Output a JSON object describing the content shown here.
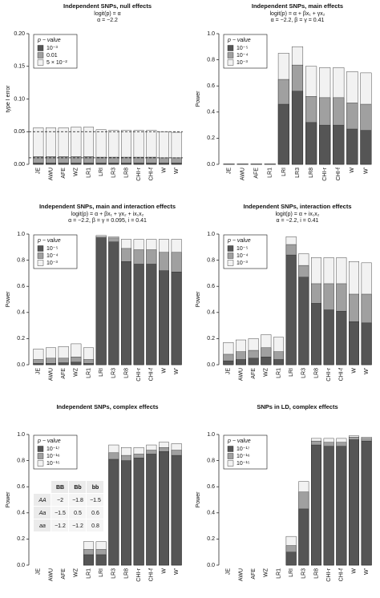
{
  "chart_data": [
    {
      "type": "overlaid_bar",
      "title": "Independent SNPs, null effects",
      "subtitle": [
        "logit(p) = α",
        "α = −2.2"
      ],
      "ylabel": "type I error",
      "categories": [
        "JE",
        "AWU",
        "AFE",
        "WZ",
        "LR1",
        "LRI",
        "LR3",
        "LR8",
        "CHI-r",
        "CHI-f",
        "W",
        "W'"
      ],
      "legend_title": "p − value",
      "legend": "top-left",
      "series": [
        {
          "name": "10⁻³",
          "color": "#555555",
          "values": [
            0.002,
            0.002,
            0.002,
            0.002,
            0.002,
            0.002,
            0.002,
            0.002,
            0.002,
            0.002,
            0.002,
            0.002
          ]
        },
        {
          "name": "0.01",
          "color": "#a0a0a0",
          "values": [
            0.012,
            0.012,
            0.012,
            0.012,
            0.012,
            0.011,
            0.011,
            0.011,
            0.011,
            0.011,
            0.01,
            0.01
          ]
        },
        {
          "name": "5 × 10⁻²",
          "color": "#f2f2f2",
          "values": [
            0.056,
            0.056,
            0.056,
            0.057,
            0.057,
            0.053,
            0.052,
            0.052,
            0.052,
            0.052,
            0.05,
            0.049
          ]
        }
      ],
      "reference_lines": [
        0.05,
        0.01
      ],
      "ylim": [
        0,
        0.2
      ],
      "yticks": [
        {
          "value": 0,
          "label": "0.00"
        },
        0.05,
        {
          "value": 0.1,
          "label": "0.10"
        },
        0.15,
        {
          "value": 0.2,
          "label": "0.20"
        }
      ]
    },
    {
      "type": "overlaid_bar",
      "title": "Independent SNPs, main effects",
      "subtitle": [
        "logit(p) = α + βx₁ + γx₂",
        "α = −2.2,  β = γ = 0.41"
      ],
      "ylabel": "Power",
      "categories": [
        "JE",
        "AWU",
        "AFE",
        "LR1",
        "LRI",
        "LR3",
        "LR8",
        "CHI-r",
        "CHI-f",
        "W",
        "W'"
      ],
      "legend_title": "p − value",
      "legend": "top-left",
      "series": [
        {
          "name": "10⁻⁵",
          "color": "#555555",
          "values": [
            0.002,
            0.002,
            0.002,
            0.002,
            0.46,
            0.56,
            0.32,
            0.3,
            0.3,
            0.27,
            0.26
          ]
        },
        {
          "name": "10⁻⁴",
          "color": "#a0a0a0",
          "values": [
            0.002,
            0.002,
            0.002,
            0.002,
            0.65,
            0.76,
            0.52,
            0.51,
            0.51,
            0.47,
            0.46
          ]
        },
        {
          "name": "10⁻³",
          "color": "#f2f2f2",
          "values": [
            0.003,
            0.003,
            0.003,
            0.003,
            0.85,
            0.9,
            0.75,
            0.74,
            0.74,
            0.71,
            0.7
          ]
        }
      ],
      "ylim": [
        0,
        1
      ],
      "yticks": [
        {
          "value": 0,
          "label": "0.0"
        },
        0.2,
        0.4,
        0.6,
        0.8,
        {
          "value": 1,
          "label": "1.0"
        }
      ]
    },
    {
      "type": "overlaid_bar",
      "title": "Independent SNPs, main and interaction effects",
      "subtitle": [
        "logit(p) = α + βx₁ + γx₂ + ix₁x₂",
        "α = −2.2,  β = γ = 0.095,  i = 0.41"
      ],
      "ylabel": "Power",
      "categories": [
        "JE",
        "AWU",
        "AFE",
        "WZ",
        "LR1",
        "LRI",
        "LR3",
        "LR8",
        "CHI-r",
        "CHI-f",
        "W",
        "W'"
      ],
      "legend_title": "p − value",
      "legend": "top-left",
      "series": [
        {
          "name": "10⁻⁵",
          "color": "#555555",
          "values": [
            0.01,
            0.01,
            0.015,
            0.02,
            0.01,
            0.97,
            0.94,
            0.79,
            0.77,
            0.77,
            0.72,
            0.71
          ]
        },
        {
          "name": "10⁻⁴",
          "color": "#a0a0a0",
          "values": [
            0.04,
            0.05,
            0.05,
            0.06,
            0.04,
            0.98,
            0.97,
            0.89,
            0.88,
            0.88,
            0.86,
            0.86
          ]
        },
        {
          "name": "10⁻³",
          "color": "#f2f2f2",
          "values": [
            0.12,
            0.13,
            0.14,
            0.16,
            0.13,
            0.99,
            0.98,
            0.96,
            0.96,
            0.96,
            0.96,
            0.96
          ]
        }
      ],
      "ylim": [
        0,
        1
      ],
      "yticks": [
        {
          "value": 0,
          "label": "0.0"
        },
        0.2,
        0.4,
        0.6,
        0.8,
        {
          "value": 1,
          "label": "1.0"
        }
      ]
    },
    {
      "type": "overlaid_bar",
      "title": "Independent SNPs, interaction effects",
      "subtitle": [
        "logit(p) = α + ix₁x₂",
        "α = −2.2,  i = 0.41"
      ],
      "ylabel": "Power",
      "categories": [
        "JE",
        "AWU",
        "AFE",
        "WZ",
        "LR1",
        "LRI",
        "LR3",
        "LR8",
        "CHI-r",
        "CHI-f",
        "W",
        "W'"
      ],
      "legend_title": "p − value",
      "legend": "top-left",
      "series": [
        {
          "name": "10⁻⁵",
          "color": "#555555",
          "values": [
            0.03,
            0.04,
            0.05,
            0.06,
            0.04,
            0.84,
            0.67,
            0.47,
            0.42,
            0.41,
            0.33,
            0.32
          ]
        },
        {
          "name": "10⁻⁴",
          "color": "#a0a0a0",
          "values": [
            0.08,
            0.1,
            0.11,
            0.13,
            0.1,
            0.92,
            0.76,
            0.62,
            0.62,
            0.62,
            0.54,
            0.54
          ]
        },
        {
          "name": "10⁻³",
          "color": "#f2f2f2",
          "values": [
            0.17,
            0.19,
            0.2,
            0.23,
            0.21,
            0.98,
            0.85,
            0.82,
            0.82,
            0.82,
            0.79,
            0.78
          ]
        }
      ],
      "ylim": [
        0,
        1
      ],
      "yticks": [
        {
          "value": 0,
          "label": "0.0"
        },
        0.2,
        0.4,
        0.6,
        0.8,
        {
          "value": 1,
          "label": "1.0"
        }
      ]
    },
    {
      "type": "overlaid_bar",
      "title": "Independent SNPs, complex effects",
      "ylabel": "Power",
      "categories": [
        "JE",
        "AWU",
        "AFE",
        "WZ",
        "LR1",
        "LRI",
        "LR3",
        "LR8",
        "CHI-r",
        "CHI-f",
        "W",
        "W'"
      ],
      "legend_title": "p − value",
      "legend": "top-left",
      "series": [
        {
          "name": "10⁻¹⁷",
          "color": "#555555",
          "values": [
            0,
            0,
            0,
            0,
            0.08,
            0.08,
            0.81,
            0.8,
            0.82,
            0.85,
            0.87,
            0.84
          ]
        },
        {
          "name": "10⁻¹⁶",
          "color": "#a0a0a0",
          "values": [
            0,
            0,
            0,
            0,
            0.12,
            0.12,
            0.86,
            0.84,
            0.85,
            0.88,
            0.9,
            0.88
          ]
        },
        {
          "name": "10⁻¹⁵",
          "color": "#f2f2f2",
          "values": [
            0,
            0,
            0,
            0,
            0.18,
            0.18,
            0.92,
            0.9,
            0.9,
            0.92,
            0.94,
            0.93
          ]
        }
      ],
      "inset_table": {
        "columns": [
          "BB",
          "Bb",
          "bb"
        ],
        "rows": [
          {
            "label": "AA",
            "cells": [
              "−2",
              "−1.8",
              "−1.5"
            ]
          },
          {
            "label": "Aa",
            "cells": [
              "−1.5",
              "0.5",
              "0.6"
            ]
          },
          {
            "label": "aa",
            "cells": [
              "−1.2",
              "−1.2",
              "0.8"
            ]
          }
        ]
      },
      "ylim": [
        0,
        1
      ],
      "yticks": [
        {
          "value": 0,
          "label": "0.0"
        },
        0.2,
        0.4,
        0.6,
        0.8,
        {
          "value": 1,
          "label": "1.0"
        }
      ]
    },
    {
      "type": "overlaid_bar",
      "title": "SNPs in LD, complex effects",
      "ylabel": "Power",
      "categories": [
        "JE",
        "AWU",
        "AFE",
        "WZ",
        "LR1",
        "LRI",
        "LR3",
        "LR8",
        "CHI-r",
        "CHI-f",
        "W",
        "W'"
      ],
      "legend_title": "p − value",
      "legend": "top-left",
      "series": [
        {
          "name": "10⁻¹⁷",
          "color": "#555555",
          "values": [
            0,
            0,
            0,
            0,
            0,
            0.1,
            0.43,
            0.92,
            0.91,
            0.91,
            0.96,
            0.95
          ]
        },
        {
          "name": "10⁻¹⁶",
          "color": "#a0a0a0",
          "values": [
            0,
            0,
            0,
            0,
            0,
            0.15,
            0.56,
            0.95,
            0.94,
            0.94,
            0.98,
            0.97
          ]
        },
        {
          "name": "10⁻¹⁵",
          "color": "#f2f2f2",
          "values": [
            0,
            0,
            0,
            0,
            0,
            0.22,
            0.64,
            0.97,
            0.97,
            0.97,
            0.99,
            0.98
          ]
        }
      ],
      "ylim": [
        0,
        1
      ],
      "yticks": [
        {
          "value": 0,
          "label": "0.0"
        },
        0.2,
        0.4,
        0.6,
        0.8,
        {
          "value": 1,
          "label": "1.0"
        }
      ]
    }
  ]
}
